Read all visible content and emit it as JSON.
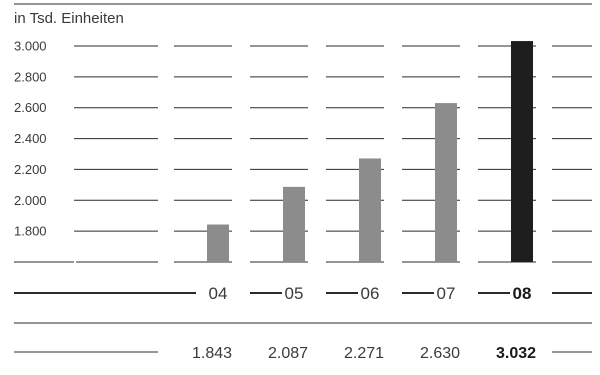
{
  "chart_data": {
    "type": "bar",
    "unit_label": "in Tsd. Einheiten",
    "categories": [
      "04",
      "05",
      "06",
      "07",
      "08"
    ],
    "values": [
      1843,
      2087,
      2271,
      2630,
      3032
    ],
    "value_labels": [
      "1.843",
      "2.087",
      "2.271",
      "2.630",
      "3.032"
    ],
    "y_ticks": [
      {
        "value": 3000,
        "label": "3.000"
      },
      {
        "value": 2800,
        "label": "2.800"
      },
      {
        "value": 2600,
        "label": "2.600"
      },
      {
        "value": 2400,
        "label": "2.400"
      },
      {
        "value": 2200,
        "label": "2.200"
      },
      {
        "value": 2000,
        "label": "2.000"
      },
      {
        "value": 1800,
        "label": "1.800"
      }
    ],
    "ylim": [
      1600,
      3000
    ],
    "highlight_index": 4,
    "colors": {
      "bar": "#8c8c8c",
      "highlight": "#1e1e1e",
      "line": "#2b2b2b",
      "text": "#3a3a3a"
    }
  }
}
